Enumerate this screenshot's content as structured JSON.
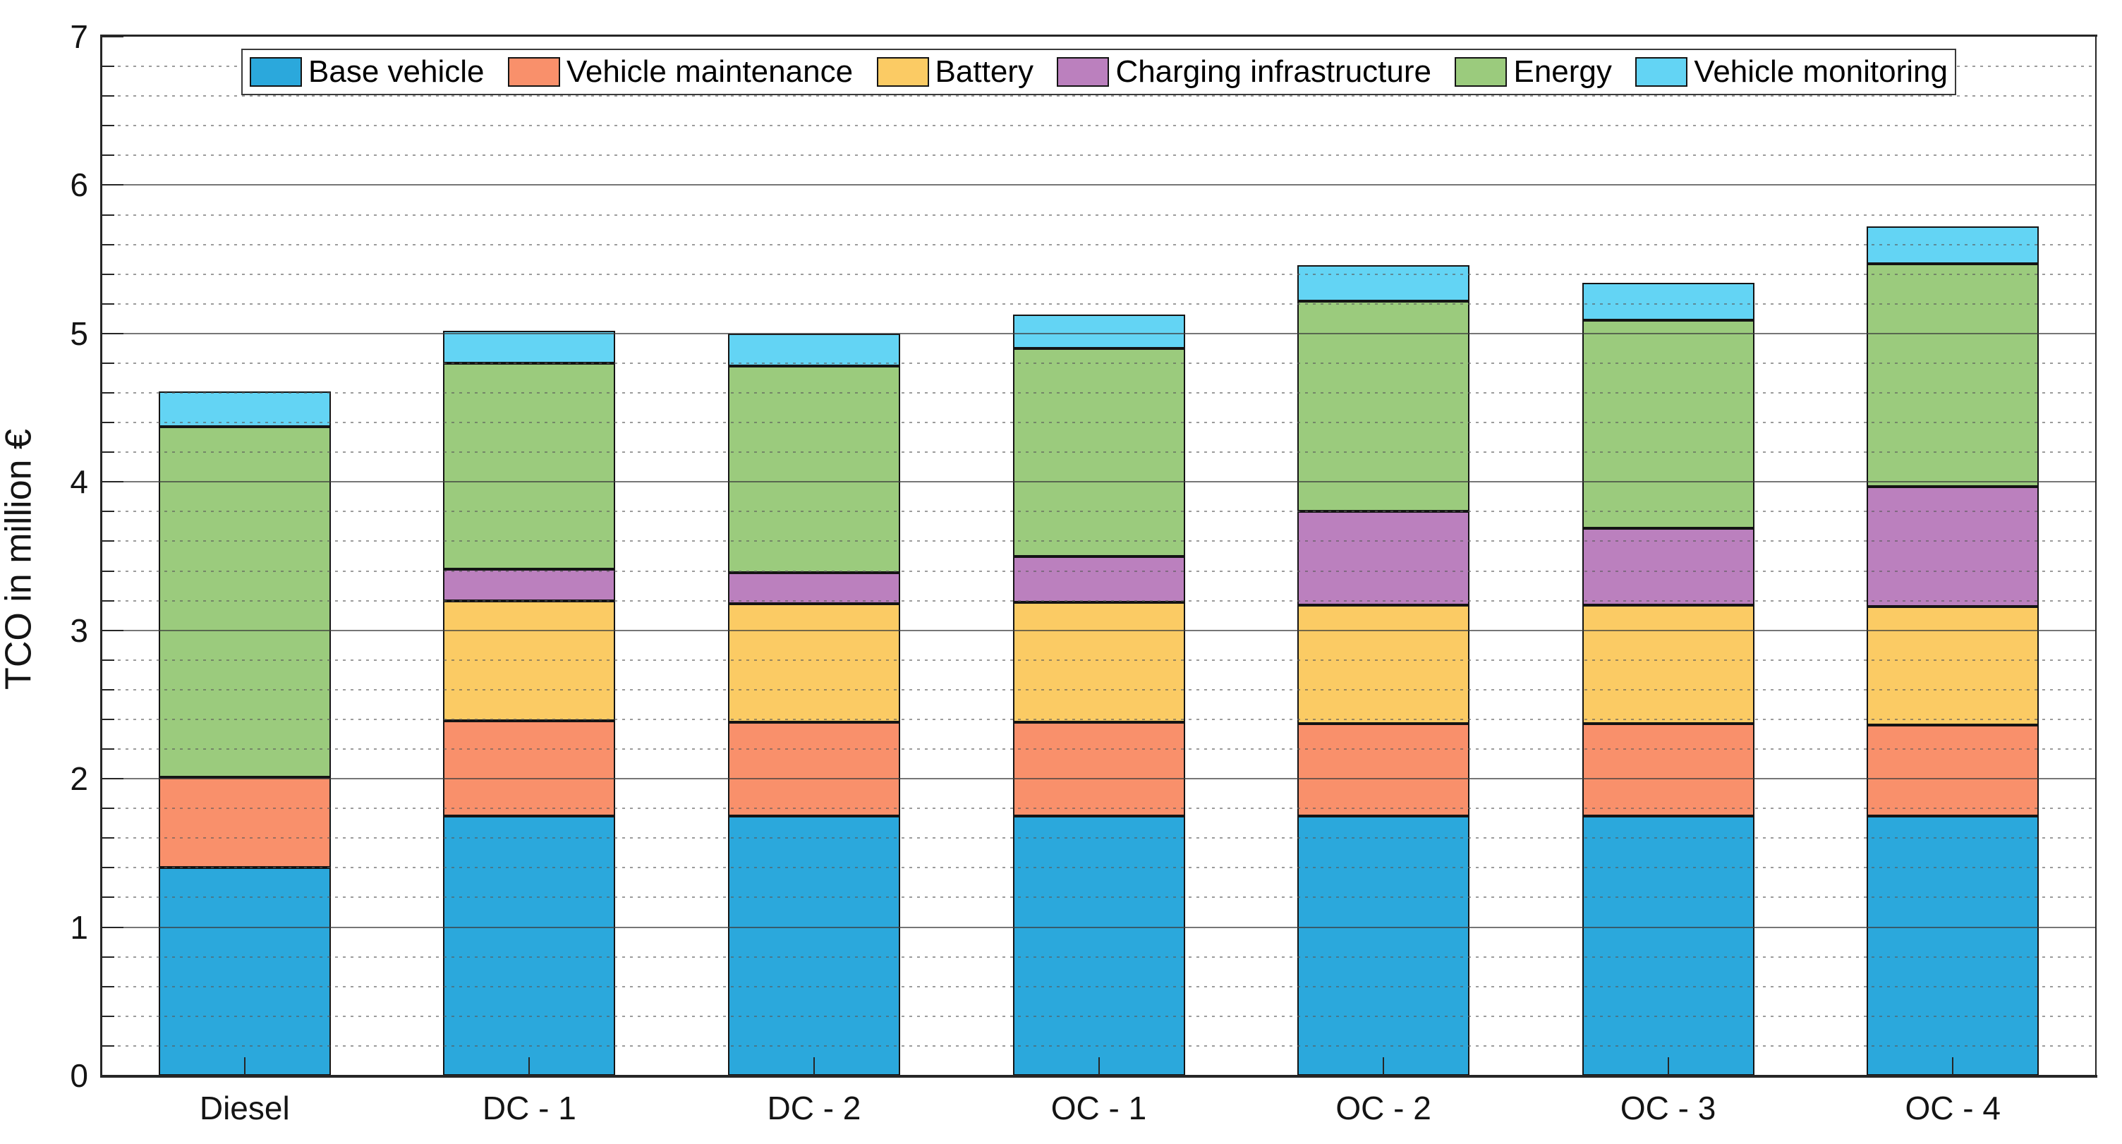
{
  "chart_data": {
    "type": "bar",
    "stacked": true,
    "title": "",
    "xlabel": "",
    "ylabel": "TCO in million €",
    "ylim": [
      0,
      7
    ],
    "y_ticks": [
      0,
      1,
      2,
      3,
      4,
      5,
      6,
      7
    ],
    "y_minor_step": 0.2,
    "grid": "major-solid, minor-dotted, drawn over bars",
    "legend_position": "top-inside-centered",
    "bar_edge_color": "#141414",
    "categories": [
      "Diesel",
      "DC - 1",
      "DC - 2",
      "OC - 1",
      "OC - 2",
      "OC - 3",
      "OC - 4"
    ],
    "series": [
      {
        "name": "Base vehicle",
        "color": "#2BA8DC",
        "values": [
          1.4,
          1.75,
          1.75,
          1.75,
          1.75,
          1.75,
          1.75
        ]
      },
      {
        "name": "Vehicle maintenance",
        "color": "#F9906B",
        "values": [
          0.61,
          0.64,
          0.63,
          0.63,
          0.62,
          0.62,
          0.61
        ]
      },
      {
        "name": "Battery",
        "color": "#FBCB64",
        "values": [
          0,
          0.81,
          0.8,
          0.81,
          0.8,
          0.8,
          0.8
        ]
      },
      {
        "name": "Charging infrastructure",
        "color": "#BB80BE",
        "values": [
          0,
          0.21,
          0.21,
          0.31,
          0.63,
          0.52,
          0.81
        ]
      },
      {
        "name": "Energy",
        "color": "#9BCB7D",
        "values": [
          2.36,
          1.39,
          1.39,
          1.4,
          1.42,
          1.4,
          1.5
        ]
      },
      {
        "name": "Vehicle monitoring",
        "color": "#63D4F4",
        "values": [
          0.24,
          0.22,
          0.22,
          0.23,
          0.24,
          0.25,
          0.25
        ]
      }
    ],
    "stack_totals": [
      4.61,
      5.02,
      5.0,
      5.13,
      5.46,
      5.34,
      5.72
    ]
  }
}
